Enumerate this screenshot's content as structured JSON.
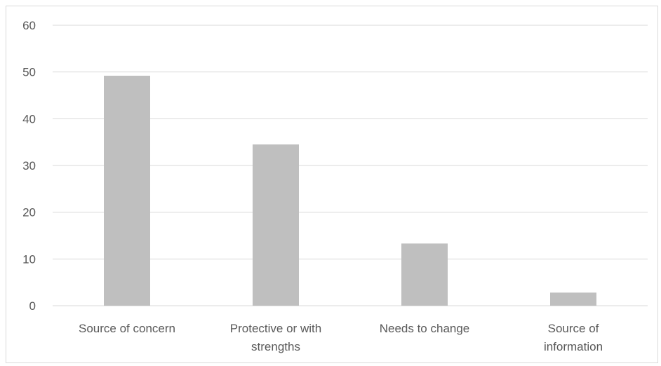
{
  "chart_data": {
    "type": "bar",
    "title": "",
    "xlabel": "",
    "ylabel": "",
    "categories": [
      [
        "Source of concern"
      ],
      [
        "Protective or with",
        "strengths"
      ],
      [
        "Needs to change"
      ],
      [
        "Source of",
        "information"
      ]
    ],
    "values": [
      49.2,
      34.5,
      13.3,
      2.8
    ],
    "ylim": [
      0,
      60
    ],
    "yticks": [
      0,
      10,
      20,
      30,
      40,
      50,
      60
    ],
    "grid": true,
    "legend": "none",
    "colors": {
      "bar": "#bfbfbf",
      "grid": "#d9d9d9",
      "text": "#595959"
    }
  }
}
